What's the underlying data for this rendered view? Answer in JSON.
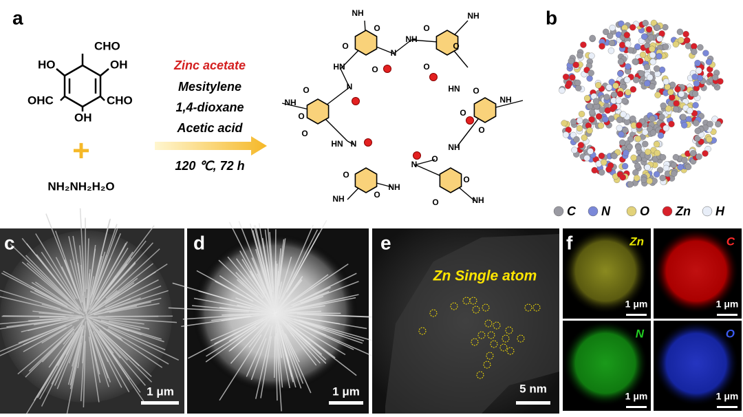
{
  "panels": {
    "a": "a",
    "b": "b",
    "c": "c",
    "d": "d",
    "e": "e",
    "f": "f"
  },
  "reactant": {
    "labels": [
      "CHO",
      "HO",
      "OH",
      "OHC",
      "CHO",
      "OH"
    ],
    "plus": "+",
    "hydrazine": "NH₂NH₂H₂O"
  },
  "conditions": [
    "Zinc acetate",
    "Mesitylene",
    "1,4-dioxane",
    "Acetic acid",
    "120 ℃, 72 h"
  ],
  "structure": {
    "labels": [
      "NH",
      "NH",
      "O",
      "O",
      "N",
      "NH",
      "O",
      "O",
      "O",
      "O",
      "HN",
      "HN",
      "N",
      "O",
      "O",
      "NH",
      "NH",
      "O",
      "O",
      "O",
      "O",
      "HN",
      "N",
      "NH",
      "O",
      "N",
      "O",
      "O",
      "NH",
      "NH",
      "O",
      "O",
      "NH"
    ]
  },
  "legend": [
    "C",
    "N",
    "O",
    "Zn",
    "H"
  ],
  "scale_bars": {
    "c": "1 μm",
    "d": "1 μm",
    "e": "5 nm",
    "f": [
      "1 μm",
      "1 μm",
      "1 μm",
      "1 μm"
    ]
  },
  "annotation_e": "Zn Single atom",
  "map_labels": [
    "Zn",
    "C",
    "N",
    "O"
  ]
}
